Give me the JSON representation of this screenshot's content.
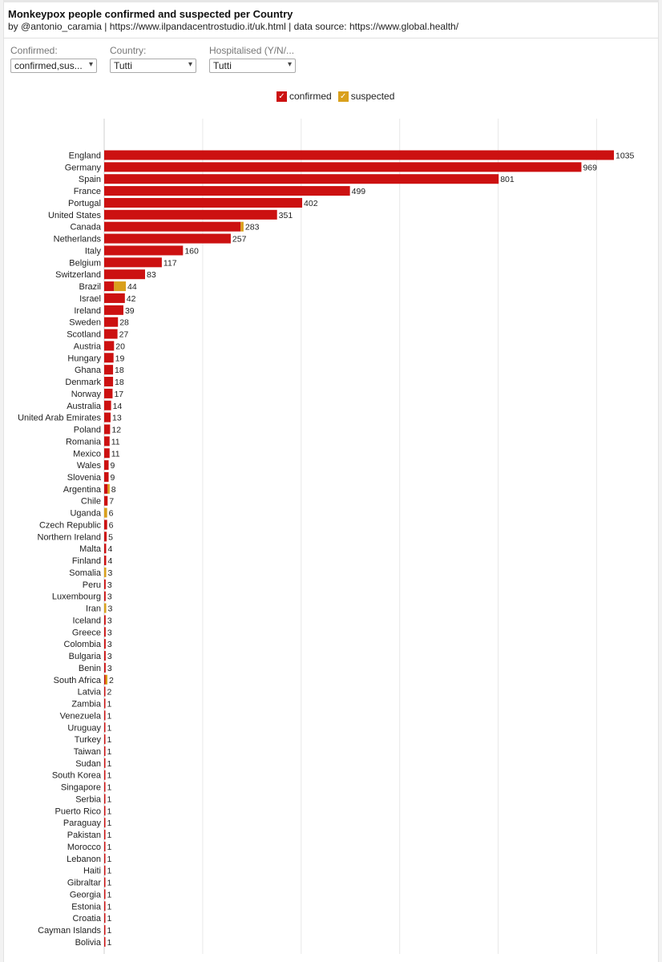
{
  "header": {
    "title": "Monkeypox people confirmed and suspected per Country",
    "subtitle": "by @antonio_caramia | https://www.ilpandacentrostudio.it/uk.html | data source: https://www.global.health/"
  },
  "filters": [
    {
      "label": "Confirmed:",
      "value": "confirmed,sus..."
    },
    {
      "label": "Country:",
      "value": "Tutti"
    },
    {
      "label": "Hospitalised (Y/N/...",
      "value": "Tutti"
    }
  ],
  "legend": [
    {
      "name": "confirmed",
      "color": "#cc1111"
    },
    {
      "name": "suspected",
      "color": "#d9a01c"
    }
  ],
  "chart_data": {
    "type": "bar",
    "orientation": "horizontal",
    "stacked": true,
    "xlim": [
      0,
      1050
    ],
    "grid": true,
    "legend_position": "top-center",
    "categories": [
      "England",
      "Germany",
      "Spain",
      "France",
      "Portugal",
      "United States",
      "Canada",
      "Netherlands",
      "Italy",
      "Belgium",
      "Switzerland",
      "Brazil",
      "Israel",
      "Ireland",
      "Sweden",
      "Scotland",
      "Austria",
      "Hungary",
      "Ghana",
      "Denmark",
      "Norway",
      "Australia",
      "United Arab Emirates",
      "Poland",
      "Romania",
      "Mexico",
      "Wales",
      "Slovenia",
      "Argentina",
      "Chile",
      "Uganda",
      "Czech Republic",
      "Northern Ireland",
      "Malta",
      "Finland",
      "Somalia",
      "Peru",
      "Luxembourg",
      "Iran",
      "Iceland",
      "Greece",
      "Colombia",
      "Bulgaria",
      "Benin",
      "South Africa",
      "Latvia",
      "Zambia",
      "Venezuela",
      "Uruguay",
      "Turkey",
      "Taiwan",
      "Sudan",
      "South Korea",
      "Singapore",
      "Serbia",
      "Puerto Rico",
      "Paraguay",
      "Pakistan",
      "Morocco",
      "Lebanon",
      "Haiti",
      "Gibraltar",
      "Georgia",
      "Estonia",
      "Croatia",
      "Cayman Islands",
      "Bolivia"
    ],
    "totals": [
      1035,
      969,
      801,
      499,
      402,
      351,
      283,
      257,
      160,
      117,
      83,
      44,
      42,
      39,
      28,
      27,
      20,
      19,
      18,
      18,
      17,
      14,
      13,
      12,
      11,
      11,
      9,
      9,
      8,
      7,
      6,
      6,
      5,
      4,
      4,
      3,
      3,
      3,
      3,
      3,
      3,
      3,
      3,
      3,
      2,
      2,
      1,
      1,
      1,
      1,
      1,
      1,
      1,
      1,
      1,
      1,
      1,
      1,
      1,
      1,
      1,
      1,
      1,
      1,
      1,
      1,
      1
    ],
    "series": [
      {
        "name": "confirmed",
        "color": "#cc1111",
        "values": [
          1035,
          969,
          801,
          499,
          402,
          351,
          277,
          257,
          160,
          117,
          83,
          20,
          42,
          39,
          28,
          27,
          20,
          19,
          18,
          18,
          17,
          14,
          13,
          12,
          11,
          11,
          9,
          9,
          7,
          7,
          0,
          6,
          5,
          4,
          4,
          0,
          3,
          3,
          0,
          3,
          3,
          3,
          3,
          3,
          1,
          2,
          1,
          1,
          1,
          1,
          1,
          1,
          1,
          1,
          1,
          1,
          1,
          1,
          1,
          1,
          1,
          1,
          1,
          1,
          1,
          1,
          1
        ]
      },
      {
        "name": "suspected",
        "color": "#d9a01c",
        "values": [
          0,
          0,
          0,
          0,
          0,
          0,
          6,
          0,
          0,
          0,
          0,
          24,
          0,
          0,
          0,
          0,
          0,
          0,
          0,
          0,
          0,
          0,
          0,
          0,
          0,
          0,
          0,
          0,
          1,
          0,
          6,
          0,
          0,
          0,
          0,
          3,
          0,
          0,
          3,
          0,
          0,
          0,
          0,
          0,
          1,
          0,
          0,
          0,
          0,
          0,
          0,
          0,
          0,
          0,
          0,
          0,
          0,
          0,
          0,
          0,
          0,
          0,
          0,
          0,
          0,
          0,
          0
        ]
      }
    ]
  }
}
